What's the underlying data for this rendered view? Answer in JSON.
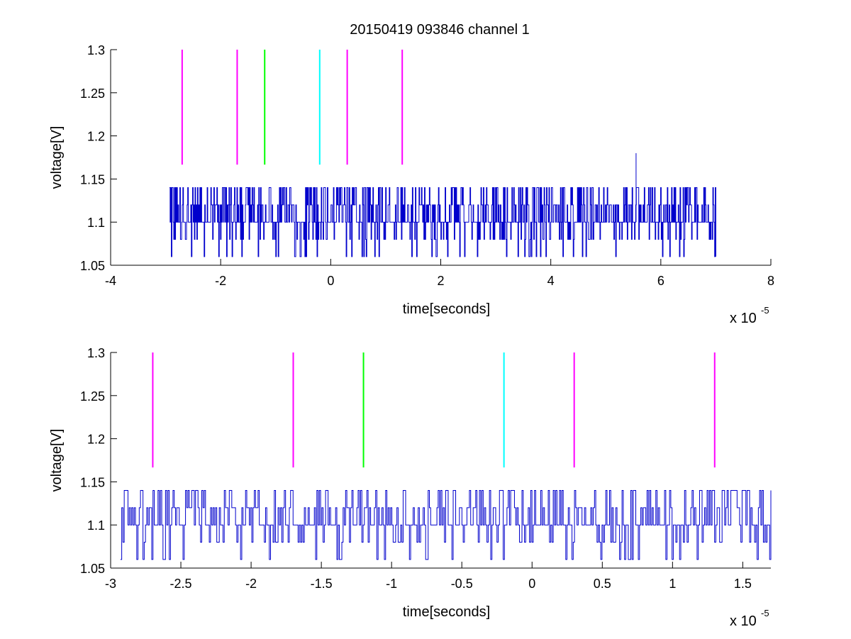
{
  "figure_title": "20150419 093846 channel 1",
  "chart_data": [
    {
      "type": "line",
      "title": "20150419 093846 channel 1",
      "xlabel": "time[seconds]",
      "ylabel": "voltage[V]",
      "x_exponent_label": "x 10",
      "x_exponent": "-5",
      "xlim": [
        -4e-05,
        8e-05
      ],
      "ylim": [
        1.05,
        1.3
      ],
      "xticks": [
        -4,
        -2,
        0,
        2,
        4,
        6,
        8
      ],
      "xtick_labels": [
        "-4",
        "-2",
        "0",
        "2",
        "4",
        "6",
        "8"
      ],
      "yticks": [
        1.05,
        1.1,
        1.15,
        1.2,
        1.25,
        1.3
      ],
      "ytick_labels": [
        "1.05",
        "1.1",
        "1.15",
        "1.2",
        "1.25",
        "1.3"
      ],
      "grid": false,
      "signal": {
        "color": "#0000cc",
        "x_start": -2.93e-05,
        "x_end": 7e-05,
        "levels": [
          1.06,
          1.08,
          1.1,
          1.12,
          1.14
        ],
        "baseline": 1.1,
        "spike": {
          "x": 5.55e-05,
          "y": 1.18
        }
      },
      "markers": [
        {
          "x": -2.7e-05,
          "color": "#ff00ff",
          "y_from": 1.1667,
          "y_to": 1.3
        },
        {
          "x": -1.7e-05,
          "color": "#ff00ff",
          "y_from": 1.1667,
          "y_to": 1.3
        },
        {
          "x": -1.2e-05,
          "color": "#00ff00",
          "y_from": 1.1667,
          "y_to": 1.3
        },
        {
          "x": -2e-06,
          "color": "#00ffff",
          "y_from": 1.1667,
          "y_to": 1.3
        },
        {
          "x": 3e-06,
          "color": "#ff00ff",
          "y_from": 1.1667,
          "y_to": 1.3
        },
        {
          "x": 1.3e-05,
          "color": "#ff00ff",
          "y_from": 1.1667,
          "y_to": 1.3
        }
      ]
    },
    {
      "type": "line",
      "title": "",
      "xlabel": "time[seconds]",
      "ylabel": "voltage[V]",
      "x_exponent_label": "x 10",
      "x_exponent": "-5",
      "xlim": [
        -3e-05,
        1.7e-05
      ],
      "ylim": [
        1.05,
        1.3
      ],
      "xticks": [
        -3,
        -2.5,
        -2,
        -1.5,
        -1,
        -0.5,
        0,
        0.5,
        1,
        1.5
      ],
      "xtick_labels": [
        "-3",
        "-2.5",
        "-2",
        "-1.5",
        "-1",
        "-0.5",
        "0",
        "0.5",
        "1",
        "1.5"
      ],
      "yticks": [
        1.05,
        1.1,
        1.15,
        1.2,
        1.25,
        1.3
      ],
      "ytick_labels": [
        "1.05",
        "1.1",
        "1.15",
        "1.2",
        "1.25",
        "1.3"
      ],
      "grid": false,
      "signal": {
        "color": "#0000cc",
        "x_start": -2.93e-05,
        "x_end": 1.7e-05,
        "levels": [
          1.06,
          1.08,
          1.1,
          1.12,
          1.14
        ],
        "baseline": 1.1
      },
      "markers": [
        {
          "x": -2.7e-05,
          "color": "#ff00ff",
          "y_from": 1.1667,
          "y_to": 1.3
        },
        {
          "x": -1.7e-05,
          "color": "#ff00ff",
          "y_from": 1.1667,
          "y_to": 1.3
        },
        {
          "x": -1.2e-05,
          "color": "#00ff00",
          "y_from": 1.1667,
          "y_to": 1.3
        },
        {
          "x": -2e-06,
          "color": "#00ffff",
          "y_from": 1.1667,
          "y_to": 1.3
        },
        {
          "x": 3e-06,
          "color": "#ff00ff",
          "y_from": 1.1667,
          "y_to": 1.3
        },
        {
          "x": 1.3e-05,
          "color": "#ff00ff",
          "y_from": 1.1667,
          "y_to": 1.3
        }
      ]
    }
  ]
}
